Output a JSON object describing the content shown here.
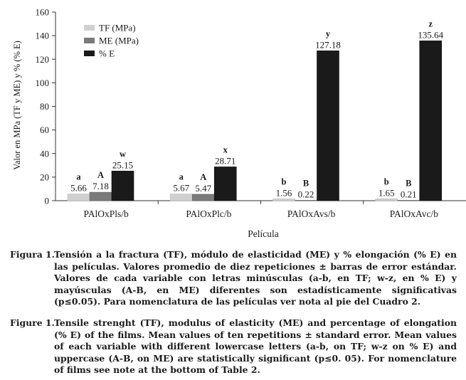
{
  "chart_data": {
    "type": "bar",
    "title": "",
    "xlabel": "Película",
    "ylabel": "Valor en MPa (TF y ME) y % (% E)",
    "ylim": [
      0,
      160
    ],
    "yticks": [
      0,
      20,
      40,
      60,
      80,
      100,
      120,
      140,
      160
    ],
    "categories": [
      "PAlOxPls/b",
      "PAlOxPlc/b",
      "PAlOxAvs/b",
      "PAlOxAvc/b"
    ],
    "series": [
      {
        "name": "TF (MPa)",
        "color": "#d0d0d0",
        "values": [
          5.66,
          5.67,
          1.56,
          1.65
        ],
        "labels": [
          "5.66",
          "5.67",
          "1.56",
          "1.65"
        ],
        "letters": [
          "a",
          "a",
          "b",
          "b"
        ]
      },
      {
        "name": "ME (MPa)",
        "color": "#7a7a7a",
        "values": [
          7.18,
          5.47,
          0.22,
          0.21
        ],
        "labels": [
          "7.18",
          "5.47",
          "0.22",
          "0.21"
        ],
        "letters": [
          "A",
          "A",
          "B",
          "B"
        ]
      },
      {
        "name": "% E",
        "color": "#1a1a1a",
        "values": [
          25.15,
          28.71,
          127.18,
          135.64
        ],
        "labels": [
          "25.15",
          "28.71",
          "127.18",
          "135.64"
        ],
        "letters": [
          "w",
          "x",
          "y",
          "z"
        ]
      }
    ],
    "legend_position": "top-left",
    "grid": false
  },
  "captions": {
    "es_label": "Figura 1.",
    "es_text": "Tensión a la fractura (TF), módulo de elasticidad (ME) y % elongación (% E) en las películas. Valores promedio de diez repeticiones ± barras de error estándar. Valores de cada variable con letras minúsculas (a-b, en TF; w-z, en % E) y mayúsculas (A-B, en ME) diferentes son estadísticamente significativas (p≤0.05). Para nomenclatura de las películas ver nota al pie del Cuadro 2.",
    "en_label": "Figure 1.",
    "en_text": "Tensile strenght (TF), modulus of elasticity (ME) and percentage of elongation (% E) of the films. Mean values of ten repetitions ± standard error. Mean values of each variable with different lowercase letters (a-b, on TF; w-z on % E) and uppercase (A-B, on ME) are statistically significant (p≤0. 05). For nomenclature of films see note at the bottom of Table 2."
  }
}
